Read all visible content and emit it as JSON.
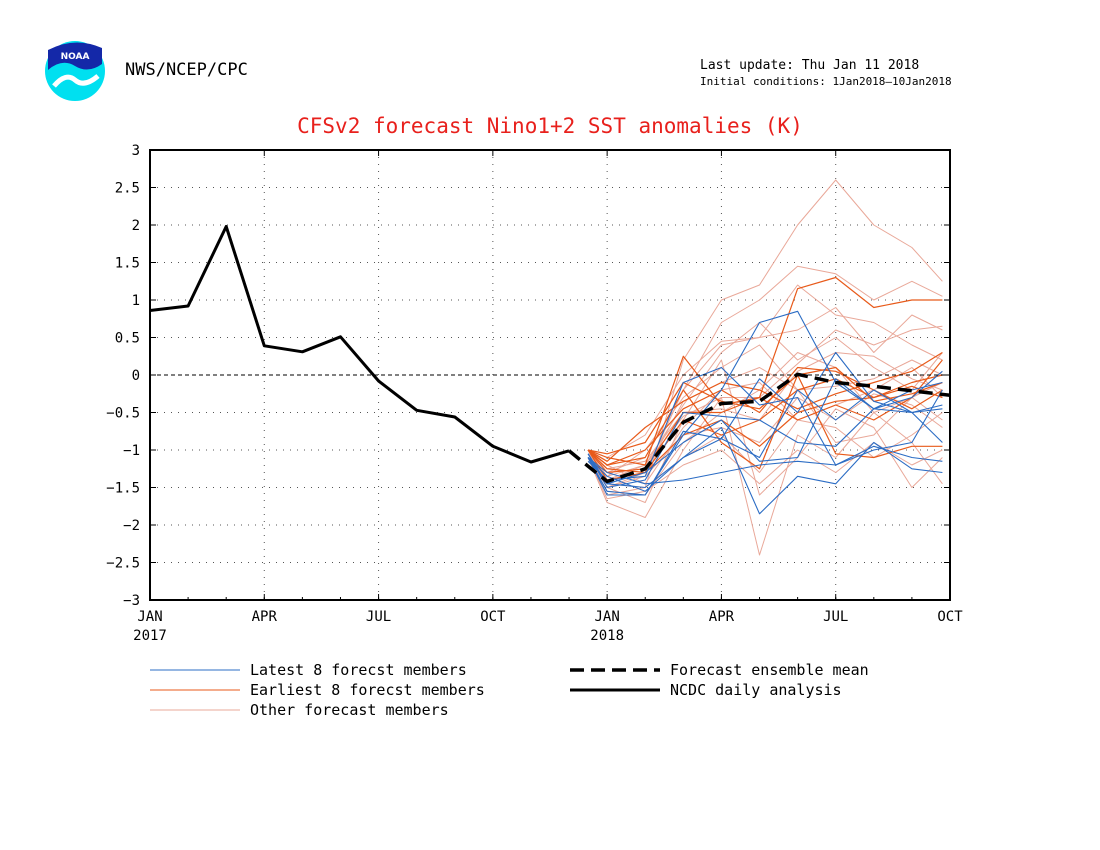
{
  "header": {
    "agency": "NWS/NCEP/CPC",
    "last_update": "Last update: Thu Jan 11 2018",
    "initial_conditions": "Initial conditions: 1Jan2018–10Jan2018",
    "logo_text": "NOAA"
  },
  "chart_data": {
    "type": "line",
    "title": "CFSv2 forecast Nino1+2 SST anomalies (K)",
    "xlabel": "",
    "ylabel": "",
    "ylim": [
      -3,
      3
    ],
    "yticks": [
      3,
      2.5,
      2,
      1.5,
      1,
      0.5,
      0,
      -0.5,
      -1,
      -1.5,
      -2,
      -2.5,
      -3
    ],
    "ytick_labels": [
      "3",
      "2.5",
      "2",
      "1.5",
      "1",
      "0.5",
      "0",
      "−0.5",
      "−1",
      "−1.5",
      "−2",
      "−2.5",
      "−3"
    ],
    "xticks": [
      {
        "label": "JAN",
        "sub": "2017",
        "month": 0
      },
      {
        "label": "APR",
        "sub": "",
        "month": 3
      },
      {
        "label": "JUL",
        "sub": "",
        "month": 6
      },
      {
        "label": "OCT",
        "sub": "",
        "month": 9
      },
      {
        "label": "JAN",
        "sub": "2018",
        "month": 12
      },
      {
        "label": "APR",
        "sub": "",
        "month": 15
      },
      {
        "label": "JUL",
        "sub": "",
        "month": 18
      },
      {
        "label": "OCT",
        "sub": "",
        "month": 21
      }
    ],
    "xlim": [
      0,
      21
    ],
    "grid": true,
    "zero_line": true,
    "colors": {
      "latest": "#2b6cc4",
      "earliest": "#e85a1a",
      "other": "#e9a899",
      "mean": "#000000",
      "analysis": "#000000",
      "title": "#e8201c"
    },
    "analysis": {
      "name": "NCDC daily analysis",
      "x": [
        0,
        1,
        2,
        3,
        4,
        5,
        6,
        7,
        8,
        9,
        10,
        11
      ],
      "y": [
        0.86,
        0.92,
        1.98,
        0.39,
        0.31,
        0.51,
        -0.08,
        -0.47,
        -0.56,
        -0.95,
        -1.16,
        -1.01
      ]
    },
    "ensemble_mean": {
      "name": "Forecast ensemble mean",
      "x": [
        11,
        12,
        13,
        14,
        15,
        16,
        17,
        18,
        19,
        20,
        21
      ],
      "y": [
        -1.01,
        -1.42,
        -1.25,
        -0.63,
        -0.38,
        -0.35,
        0.01,
        -0.1,
        -0.15,
        -0.21,
        -0.27
      ]
    },
    "latest_members": {
      "name": "Latest 8 forecst members",
      "x": [
        11.5,
        12,
        13,
        14,
        15,
        16,
        17,
        18,
        19,
        20,
        20.8
      ],
      "series": [
        [
          -1.1,
          -1.45,
          -1.5,
          -1.1,
          -0.7,
          -1.85,
          -1.35,
          -1.45,
          -0.9,
          -1.25,
          -1.3
        ],
        [
          -1.1,
          -1.55,
          -1.6,
          -0.8,
          -0.2,
          0.7,
          0.85,
          -0.1,
          -0.45,
          -0.5,
          -0.4
        ],
        [
          -1.15,
          -1.4,
          -1.35,
          -0.1,
          0.1,
          -0.4,
          -0.3,
          -1.2,
          -0.95,
          -1.1,
          -1.15
        ],
        [
          -1.1,
          -1.3,
          -1.45,
          -1.4,
          -1.3,
          -1.2,
          -1.15,
          -1.2,
          -1.0,
          -0.9,
          -0.2
        ],
        [
          -1.05,
          -1.5,
          -1.4,
          -0.5,
          -0.55,
          -0.6,
          -0.9,
          -0.95,
          -0.45,
          -0.3,
          0.05
        ],
        [
          -1.1,
          -1.35,
          -1.55,
          -1.1,
          -0.85,
          -1.1,
          -0.2,
          -0.6,
          -0.2,
          -0.5,
          -0.9
        ],
        [
          -1.05,
          -1.45,
          -1.3,
          -0.9,
          -0.6,
          -1.15,
          -1.1,
          -0.05,
          -0.45,
          -0.2,
          -0.1
        ],
        [
          -1.1,
          -1.6,
          -1.6,
          -0.75,
          -0.85,
          -0.05,
          -0.5,
          0.3,
          -0.35,
          -0.5,
          -0.45
        ]
      ]
    },
    "earliest_members": {
      "name": "Earliest 8 forecst members",
      "x": [
        11.5,
        12,
        13,
        14,
        15,
        16,
        17,
        18,
        19,
        20,
        20.8
      ],
      "series": [
        [
          -1.0,
          -1.1,
          -1.2,
          0.25,
          -0.4,
          -0.3,
          1.15,
          1.3,
          0.9,
          1.0,
          1.0
        ],
        [
          -1.0,
          -1.2,
          -1.1,
          -0.2,
          -0.9,
          -1.25,
          0.0,
          -1.05,
          -1.1,
          -0.95,
          -0.95
        ],
        [
          -1.0,
          -1.15,
          -0.7,
          -0.35,
          -0.1,
          -0.2,
          -0.45,
          -0.25,
          -0.1,
          0.05,
          0.3
        ],
        [
          -1.0,
          -1.3,
          -1.25,
          -0.5,
          -0.5,
          -0.3,
          -0.6,
          -0.4,
          -0.6,
          -0.3,
          0.2
        ],
        [
          -1.0,
          -1.25,
          -1.3,
          -0.6,
          -0.8,
          -0.6,
          -0.2,
          -0.05,
          -0.3,
          -0.15,
          -0.3
        ],
        [
          -1.0,
          -1.05,
          -0.9,
          -0.1,
          -0.35,
          -0.45,
          0.0,
          0.1,
          -0.35,
          -0.25,
          -0.1
        ],
        [
          -1.0,
          -1.2,
          -1.0,
          -0.45,
          -0.2,
          -0.5,
          0.1,
          0.05,
          -0.2,
          -0.45,
          -0.2
        ],
        [
          -1.0,
          -1.4,
          -1.3,
          -0.8,
          -0.6,
          -0.95,
          -0.5,
          -0.35,
          -0.3,
          -0.1,
          0.0
        ]
      ]
    },
    "other_members": {
      "name": "Other forecast members",
      "x": [
        11.5,
        12,
        13,
        14,
        15,
        16,
        17,
        18,
        19,
        20,
        20.8
      ],
      "series": [
        [
          -1.1,
          -1.6,
          -1.5,
          0.2,
          1.0,
          1.2,
          2.0,
          2.6,
          2.0,
          1.7,
          1.25
        ],
        [
          -1.1,
          -1.5,
          -1.3,
          -0.2,
          0.7,
          1.0,
          1.45,
          1.35,
          1.0,
          1.25,
          1.05
        ],
        [
          -1.1,
          -1.7,
          -1.9,
          -1.0,
          -0.3,
          -2.4,
          -0.8,
          -1.1,
          -0.5,
          -0.9,
          -1.45
        ],
        [
          -1.0,
          -1.5,
          -1.7,
          -0.6,
          0.2,
          -1.6,
          -1.1,
          -0.45,
          -0.7,
          -1.5,
          -1.1
        ],
        [
          -1.0,
          -1.3,
          -1.1,
          -0.2,
          0.4,
          0.5,
          0.6,
          0.9,
          0.3,
          0.8,
          0.6
        ],
        [
          -1.0,
          -1.4,
          -1.2,
          -0.4,
          0.3,
          0.7,
          0.2,
          0.5,
          0.1,
          -0.2,
          0.3
        ],
        [
          -1.0,
          -1.2,
          -1.45,
          -0.7,
          -0.2,
          -0.1,
          -0.6,
          -0.4,
          -0.2,
          0.1,
          -0.3
        ],
        [
          -1.1,
          -1.55,
          -1.6,
          -0.9,
          -0.5,
          -0.2,
          0.3,
          0.1,
          -0.5,
          -0.3,
          -0.6
        ],
        [
          -1.05,
          -1.35,
          -1.0,
          -0.3,
          0.1,
          0.4,
          -0.2,
          -0.9,
          -0.8,
          -0.3,
          -0.1
        ],
        [
          -1.0,
          -1.45,
          -1.5,
          -1.1,
          -0.8,
          -1.3,
          -0.6,
          -0.7,
          -1.1,
          -0.8,
          -0.5
        ],
        [
          -1.05,
          -1.25,
          -1.15,
          -0.5,
          -0.45,
          -0.6,
          0.05,
          0.3,
          0.25,
          -0.05,
          -0.2
        ],
        [
          -1.0,
          -1.5,
          -1.35,
          -0.8,
          -0.7,
          -0.9,
          -0.3,
          -0.6,
          -0.25,
          -0.4,
          -0.7
        ],
        [
          -1.0,
          -1.1,
          -0.8,
          0.0,
          0.45,
          0.5,
          1.2,
          0.8,
          0.7,
          0.4,
          0.2
        ],
        [
          -1.05,
          -1.4,
          -1.3,
          -0.35,
          -0.1,
          0.1,
          -0.2,
          -0.15,
          -0.05,
          0.2,
          0.0
        ],
        [
          -1.1,
          -1.65,
          -1.55,
          -1.2,
          -1.0,
          -1.45,
          -1.0,
          -1.3,
          -0.9,
          -1.2,
          -1.0
        ],
        [
          -1.0,
          -1.35,
          -1.2,
          -0.55,
          -0.3,
          -0.3,
          0.15,
          0.6,
          0.4,
          0.6,
          0.65
        ]
      ]
    },
    "legend": [
      {
        "label": "Latest 8 forecst members",
        "style": "latest"
      },
      {
        "label": "Earliest 8 forecst members",
        "style": "earliest"
      },
      {
        "label": "Other forecast members",
        "style": "other"
      },
      {
        "label": "Forecast ensemble mean",
        "style": "mean"
      },
      {
        "label": "NCDC daily analysis",
        "style": "analysis"
      }
    ]
  }
}
